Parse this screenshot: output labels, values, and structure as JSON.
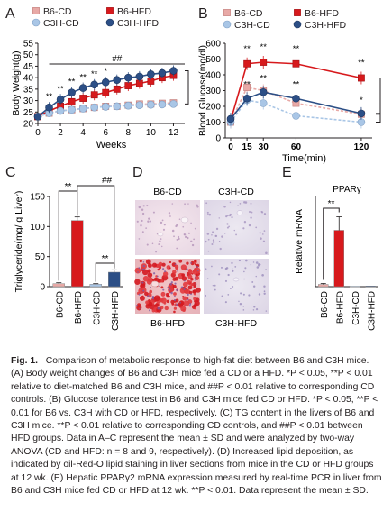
{
  "chart_data": [
    {
      "panel": "A",
      "type": "line",
      "xlabel": "Weeks",
      "ylabel": "Body Weight(g)",
      "xlim": [
        0,
        13
      ],
      "ylim": [
        20,
        55
      ],
      "xticks": [
        0,
        2,
        4,
        6,
        8,
        10,
        12
      ],
      "yticks": [
        20,
        25,
        30,
        35,
        40,
        45,
        50,
        55
      ],
      "x": [
        0,
        1,
        2,
        3,
        4,
        5,
        6,
        7,
        8,
        9,
        10,
        11,
        12
      ],
      "series": [
        {
          "name": "B6-CD",
          "color": "#e8a9a6",
          "marker": "square-open",
          "values": [
            23,
            24.5,
            25.5,
            26,
            26.5,
            27,
            27.5,
            27.5,
            28,
            28.5,
            28.5,
            28.8,
            29
          ]
        },
        {
          "name": "B6-HFD",
          "color": "#d7191c",
          "marker": "square-filled",
          "values": [
            23,
            25.5,
            27.5,
            29.5,
            31,
            32.5,
            33.5,
            35,
            36.5,
            37.5,
            38.5,
            40,
            41
          ]
        },
        {
          "name": "C3H-CD",
          "color": "#a9c6e6",
          "marker": "circle-open",
          "values": [
            23,
            24.5,
            25.5,
            26,
            26.5,
            27,
            27.3,
            27.5,
            27.8,
            28,
            28.2,
            28.3,
            28.5
          ]
        },
        {
          "name": "C3H-HFD",
          "color": "#2c4f86",
          "marker": "circle-filled",
          "values": [
            23,
            27,
            30.5,
            33.5,
            35.5,
            37,
            38,
            39,
            40,
            40.5,
            41.5,
            42,
            43
          ]
        }
      ],
      "annotations": [
        "**",
        "**",
        "**",
        "**",
        "**",
        "*",
        "##"
      ]
    },
    {
      "panel": "B",
      "type": "line",
      "xlabel": "Time(min)",
      "ylabel": "Blood Glucose(mg/dl)",
      "xlim": [
        0,
        130
      ],
      "ylim": [
        0,
        600
      ],
      "xticks": [
        0,
        15,
        30,
        60,
        120
      ],
      "yticks": [
        0,
        100,
        200,
        300,
        400,
        500,
        600
      ],
      "x": [
        0,
        15,
        30,
        60,
        120
      ],
      "series": [
        {
          "name": "B6-CD",
          "color": "#e8a9a6",
          "marker": "square-open",
          "values": [
            100,
            320,
            300,
            220,
            150
          ]
        },
        {
          "name": "B6-HFD",
          "color": "#d7191c",
          "marker": "square-filled",
          "values": [
            110,
            470,
            480,
            470,
            380
          ]
        },
        {
          "name": "C3H-CD",
          "color": "#a9c6e6",
          "marker": "circle-open",
          "values": [
            100,
            240,
            220,
            140,
            100
          ]
        },
        {
          "name": "C3H-HFD",
          "color": "#2c4f86",
          "marker": "circle-filled",
          "values": [
            120,
            250,
            290,
            250,
            155
          ]
        }
      ],
      "annotations": [
        "**",
        "**",
        "**",
        "**",
        "**",
        "**",
        "**",
        "*"
      ]
    },
    {
      "panel": "C",
      "type": "bar",
      "ylabel": "Triglyceride(mg/ g Liver)",
      "ylim": [
        0,
        150
      ],
      "yticks": [
        0,
        50,
        100,
        150
      ],
      "categories": [
        "B6-CD",
        "B6-HFD",
        "C3H-CD",
        "C3H-HFD"
      ],
      "values": [
        5,
        110,
        4,
        24
      ],
      "errors": [
        1.5,
        6,
        1,
        4
      ],
      "colors": [
        "#e8a9a6",
        "#d7191c",
        "#a9c6e6",
        "#2c4f86"
      ],
      "annotations": [
        "**",
        "##",
        "**"
      ]
    },
    {
      "panel": "E",
      "type": "bar",
      "title": "PPARγ",
      "ylabel": "Relative mRNA",
      "categories": [
        "B6-CD",
        "B6-HFD",
        "C3H-CD",
        "C3H-HFD"
      ],
      "values": [
        1,
        25,
        0.2,
        0.3
      ],
      "errors": [
        0.4,
        6,
        0,
        0
      ],
      "colors": [
        "#e8a9a6",
        "#d7191c",
        "#a9c6e6",
        "#2c4f86"
      ],
      "ylim": [
        0,
        40
      ],
      "annotations": [
        "**"
      ]
    }
  ],
  "panels": {
    "A": {
      "label": "A",
      "legend": [
        "B6-CD",
        "B6-HFD",
        "C3H-CD",
        "C3H-HFD"
      ]
    },
    "B": {
      "label": "B",
      "legend": [
        "B6-CD",
        "B6-HFD",
        "C3H-CD",
        "C3H-HFD"
      ]
    },
    "C": {
      "label": "C"
    },
    "D": {
      "label": "D",
      "images": [
        "B6-CD",
        "C3H-CD",
        "B6-HFD",
        "C3H-HFD"
      ]
    },
    "E": {
      "label": "E"
    }
  },
  "caption": {
    "figure_label": "Fig. 1.",
    "text": "Comparison of metabolic response to high-fat diet between B6 and C3H mice. (A) Body weight changes of B6 and C3H mice fed a CD or a HFD. *P < 0.05, **P < 0.01 relative to diet-matched B6 and C3H mice, and ##P < 0.01 relative to corresponding CD controls. (B) Glucose tolerance test in B6 and C3H mice fed CD or HFD. *P < 0.05, **P < 0.01 for B6 vs. C3H with CD or HFD, respectively. (C) TG content in the livers of B6 and C3H mice. **P < 0.01 relative to corresponding CD controls, and ##P < 0.01 between HFD groups. Data in A–C represent the mean ± SD and were analyzed by two-way ANOVA (CD and HFD: n = 8 and 9, respectively). (D) Increased lipid deposition, as indicated by oil-Red-O lipid staining in liver sections from mice in the CD or HFD groups at 12 wk. (E) Hepatic PPARγ2 mRNA expression measured by real-time PCR in liver from B6 and C3H mice fed CD or HFD at 12 wk. **P < 0.01. Data represent the mean ± SD."
  }
}
